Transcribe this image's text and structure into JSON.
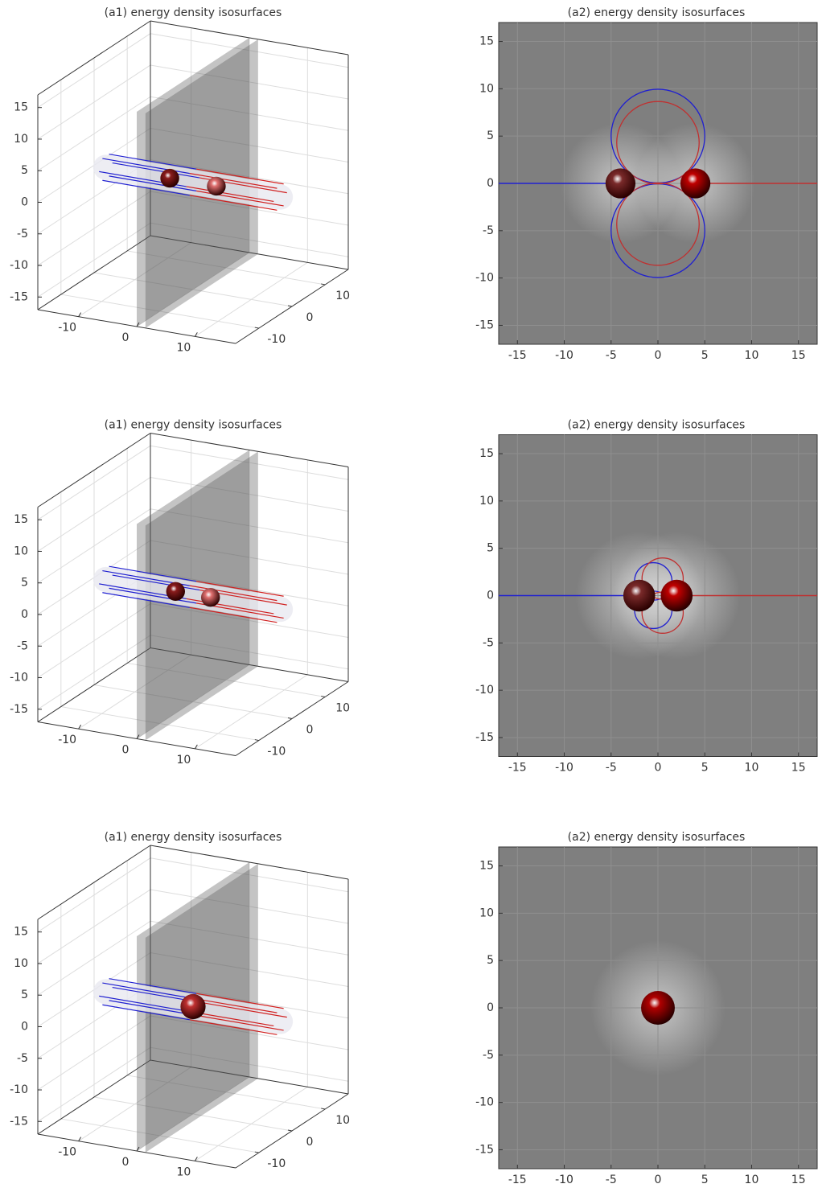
{
  "chart_data": [
    {
      "type": "box3d",
      "title": "(a1) energy density isosurfaces",
      "xlim": [
        -17,
        17
      ],
      "ylim": [
        -17,
        17
      ],
      "zlim": [
        -17,
        17
      ],
      "xticks": [
        -10,
        0,
        10
      ],
      "yticks": [
        -10,
        0,
        10
      ],
      "zticks": [
        -15,
        -10,
        -5,
        0,
        5,
        10,
        15
      ],
      "tube": {
        "x": [
          -15,
          15
        ],
        "radius": 2,
        "colors": [
          "#2020d0",
          "#d02020"
        ]
      },
      "particles": [
        {
          "x": -4,
          "y": 0,
          "z": 0,
          "r": 1.5,
          "color": "#8a1c1c"
        },
        {
          "x": 4,
          "y": 0,
          "z": 0,
          "r": 1.5,
          "color": "#e07070"
        }
      ]
    },
    {
      "type": "field2d",
      "title": "(a2) energy density isosurfaces",
      "xlim": [
        -17,
        17
      ],
      "ylim": [
        -17,
        17
      ],
      "xticks": [
        -15,
        -10,
        -5,
        0,
        5,
        10,
        15
      ],
      "yticks": [
        -15,
        -10,
        -5,
        0,
        5,
        10,
        15
      ],
      "particles": [
        {
          "x": -4,
          "y": 0,
          "r": 1.6,
          "color": "#7a2a2a"
        },
        {
          "x": 4,
          "y": 0,
          "r": 1.6,
          "color": "#c00000"
        }
      ],
      "lines": [
        {
          "x": [
            -17,
            -4
          ],
          "y": [
            0,
            0
          ],
          "color": "#2020d0"
        },
        {
          "x": [
            4,
            17
          ],
          "y": [
            0,
            0
          ],
          "color": "#c03030"
        }
      ],
      "loops": [
        {
          "cx": 0,
          "cy": 5,
          "r": 5,
          "color": "#2020d0"
        },
        {
          "cx": 0,
          "cy": -5,
          "r": 5,
          "color": "#2020d0"
        },
        {
          "cx": 0,
          "cy": 4.3,
          "r": 4.4,
          "color": "#c03030"
        },
        {
          "cx": 0,
          "cy": -4.3,
          "r": 4.4,
          "color": "#c03030"
        }
      ]
    },
    {
      "type": "box3d",
      "title": "(a1) energy density isosurfaces",
      "xlim": [
        -17,
        17
      ],
      "ylim": [
        -17,
        17
      ],
      "zlim": [
        -17,
        17
      ],
      "xticks": [
        -10,
        0,
        10
      ],
      "yticks": [
        -10,
        0,
        10
      ],
      "zticks": [
        -15,
        -10,
        -5,
        0,
        5,
        10,
        15
      ],
      "tube": {
        "x": [
          -15,
          15
        ],
        "radius": 2,
        "colors": [
          "#2020d0",
          "#d02020"
        ]
      },
      "particles": [
        {
          "x": -3,
          "y": 0,
          "z": 0,
          "r": 1.5,
          "color": "#8a1c1c"
        },
        {
          "x": 3,
          "y": 0,
          "z": 0,
          "r": 1.5,
          "color": "#e07070"
        }
      ]
    },
    {
      "type": "field2d",
      "title": "(a2) energy density isosurfaces",
      "xlim": [
        -17,
        17
      ],
      "ylim": [
        -17,
        17
      ],
      "xticks": [
        -15,
        -10,
        -5,
        0,
        5,
        10,
        15
      ],
      "yticks": [
        -15,
        -10,
        -5,
        0,
        5,
        10,
        15
      ],
      "particles": [
        {
          "x": -2,
          "y": 0,
          "r": 1.7,
          "color": "#7a2a2a"
        },
        {
          "x": 2,
          "y": 0,
          "r": 1.7,
          "color": "#c00000"
        }
      ],
      "lines": [
        {
          "x": [
            -17,
            -2
          ],
          "y": [
            0,
            0
          ],
          "color": "#2020d0"
        },
        {
          "x": [
            2,
            17
          ],
          "y": [
            0,
            0
          ],
          "color": "#c03030"
        }
      ],
      "loops": [
        {
          "cx": -0.5,
          "cy": 1.5,
          "r": 2,
          "color": "#2020d0"
        },
        {
          "cx": -0.5,
          "cy": -1.5,
          "r": 2,
          "color": "#2020d0"
        },
        {
          "cx": 0.5,
          "cy": 1.8,
          "r": 2.2,
          "color": "#c03030"
        },
        {
          "cx": 0.5,
          "cy": -1.8,
          "r": 2.2,
          "color": "#c03030"
        }
      ]
    },
    {
      "type": "box3d",
      "title": "(a1) energy density isosurfaces",
      "xlim": [
        -17,
        17
      ],
      "ylim": [
        -17,
        17
      ],
      "zlim": [
        -17,
        17
      ],
      "xticks": [
        -10,
        0,
        10
      ],
      "yticks": [
        -10,
        0,
        10
      ],
      "zticks": [
        -15,
        -10,
        -5,
        0,
        5,
        10,
        15
      ],
      "tube": {
        "x": [
          -15,
          15
        ],
        "radius": 2,
        "colors": [
          "#2020d0",
          "#d02020"
        ]
      },
      "particles": [
        {
          "x": 0,
          "y": 0,
          "z": 0,
          "r": 2,
          "color": "#c03030"
        }
      ]
    },
    {
      "type": "field2d",
      "title": "(a2) energy density isosurfaces",
      "xlim": [
        -17,
        17
      ],
      "ylim": [
        -17,
        17
      ],
      "xticks": [
        -15,
        -10,
        -5,
        0,
        5,
        10,
        15
      ],
      "yticks": [
        -15,
        -10,
        -5,
        0,
        5,
        10,
        15
      ],
      "particles": [
        {
          "x": 0,
          "y": 0,
          "r": 1.8,
          "color": "#b00000"
        }
      ],
      "lines": [],
      "loops": []
    }
  ]
}
